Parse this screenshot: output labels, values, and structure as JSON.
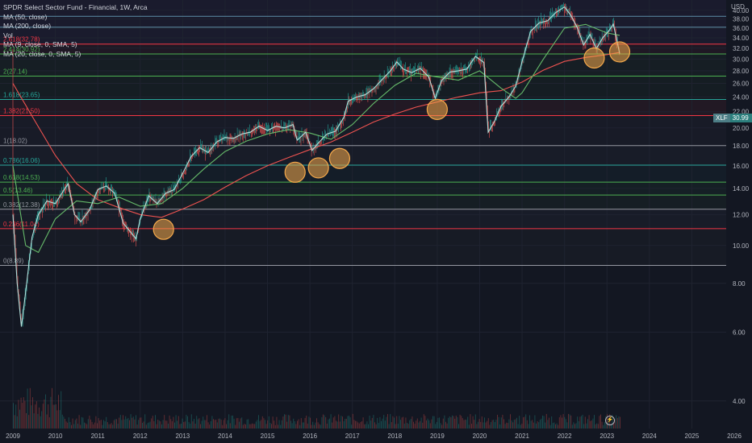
{
  "header": {
    "title": "SPDR Select Sector Fund - Financial, 1W, Arca",
    "indicators": [
      "MA (50, close)",
      "MA (200, close)",
      "Vol",
      "MA (9, close, 0, SMA, 5)",
      "MA (20, close, 0, SMA, 5)"
    ]
  },
  "price_badge": {
    "symbol": "XLF",
    "value": "30.99"
  },
  "colors": {
    "background": "#131722",
    "up": "#26a69a",
    "down": "#ef5350",
    "ma50": "#66bb6a",
    "ma200": "#ef5350",
    "fib_red": "#f23645",
    "fib_green": "#4caf50",
    "fib_grey": "#9598a1",
    "circle": "#f5a94b"
  },
  "chart_data": {
    "type": "candlestick",
    "title": "SPDR Select Sector Fund - Financial, 1W, Arca",
    "y_axis_title": "USD",
    "y_scale": "log",
    "ylim": [
      3.4,
      42.5
    ],
    "xlim": [
      2009.0,
      2026.0
    ],
    "y_ticks": [
      "40.00",
      "38.00",
      "36.00",
      "34.00",
      "32.00",
      "30.00",
      "28.00",
      "26.00",
      "24.00",
      "22.00",
      "20.00",
      "18.00",
      "16.00",
      "14.00",
      "12.00",
      "10.00",
      "8.00",
      "6.00",
      "4.00"
    ],
    "y_tick_values": [
      40,
      38,
      36,
      34,
      32,
      30,
      28,
      26,
      24,
      22,
      20,
      18,
      16,
      14,
      12,
      10,
      8,
      6,
      4
    ],
    "x_ticks": [
      "2009",
      "2010",
      "2011",
      "2012",
      "2013",
      "2014",
      "2015",
      "2016",
      "2017",
      "2018",
      "2019",
      "2020",
      "2021",
      "2022",
      "2023",
      "2024",
      "2025",
      "2026"
    ],
    "x_tick_values": [
      2009,
      2010,
      2011,
      2012,
      2013,
      2014,
      2015,
      2016,
      2017,
      2018,
      2019,
      2020,
      2021,
      2022,
      2023,
      2024,
      2025,
      2026
    ],
    "fib_levels": [
      {
        "label": "2.618(32.78)",
        "value": 32.78,
        "color": "#f23645"
      },
      {
        "label": "2.414(30.92)",
        "value": 30.92,
        "color": "#4caf50"
      },
      {
        "label": "2(27.14)",
        "value": 27.14,
        "color": "#4caf50"
      },
      {
        "label": "1.618(23.65)",
        "value": 23.65,
        "color": "#26a69a"
      },
      {
        "label": "1.382(21.50)",
        "value": 21.5,
        "color": "#f23645"
      },
      {
        "label": "1(18.02)",
        "value": 18.02,
        "color": "#9598a1"
      },
      {
        "label": "0.786(16.06)",
        "value": 16.06,
        "color": "#26a69a"
      },
      {
        "label": "0.618(14.53)",
        "value": 14.53,
        "color": "#4caf50"
      },
      {
        "label": "0.5(13.46)",
        "value": 13.46,
        "color": "#4caf50"
      },
      {
        "label": "0.382(12.38)",
        "value": 12.38,
        "color": "#9598a1"
      },
      {
        "label": "0.236(11.04)",
        "value": 11.04,
        "color": "#f23645"
      },
      {
        "label": "0(8.89)",
        "value": 8.89,
        "color": "#9598a1"
      }
    ],
    "top_lines": [
      38.6,
      36.2
    ],
    "price_path": [
      [
        2009.0,
        12.0
      ],
      [
        2009.1,
        8.0
      ],
      [
        2009.2,
        6.2
      ],
      [
        2009.3,
        7.6
      ],
      [
        2009.45,
        10.5
      ],
      [
        2009.6,
        12.0
      ],
      [
        2009.8,
        13.0
      ],
      [
        2010.0,
        12.8
      ],
      [
        2010.15,
        13.6
      ],
      [
        2010.3,
        14.4
      ],
      [
        2010.45,
        12.0
      ],
      [
        2010.6,
        11.5
      ],
      [
        2010.8,
        12.3
      ],
      [
        2011.0,
        13.9
      ],
      [
        2011.2,
        14.2
      ],
      [
        2011.4,
        13.6
      ],
      [
        2011.6,
        11.4
      ],
      [
        2011.75,
        10.9
      ],
      [
        2011.9,
        10.4
      ],
      [
        2012.0,
        11.7
      ],
      [
        2012.2,
        13.4
      ],
      [
        2012.4,
        12.8
      ],
      [
        2012.6,
        13.6
      ],
      [
        2012.8,
        13.9
      ],
      [
        2013.0,
        15.3
      ],
      [
        2013.2,
        16.9
      ],
      [
        2013.4,
        17.8
      ],
      [
        2013.6,
        17.3
      ],
      [
        2013.8,
        18.4
      ],
      [
        2014.0,
        18.9
      ],
      [
        2014.2,
        18.8
      ],
      [
        2014.4,
        19.3
      ],
      [
        2014.6,
        19.5
      ],
      [
        2014.8,
        20.2
      ],
      [
        2015.0,
        19.7
      ],
      [
        2015.2,
        20.2
      ],
      [
        2015.4,
        20.0
      ],
      [
        2015.6,
        20.4
      ],
      [
        2015.7,
        18.6
      ],
      [
        2015.9,
        19.5
      ],
      [
        2016.05,
        17.5
      ],
      [
        2016.2,
        18.3
      ],
      [
        2016.4,
        19.3
      ],
      [
        2016.6,
        19.6
      ],
      [
        2016.8,
        21.3
      ],
      [
        2016.9,
        23.4
      ],
      [
        2017.1,
        24.0
      ],
      [
        2017.3,
        24.3
      ],
      [
        2017.5,
        25.2
      ],
      [
        2017.7,
        26.6
      ],
      [
        2017.9,
        28.0
      ],
      [
        2018.05,
        29.5
      ],
      [
        2018.2,
        28.3
      ],
      [
        2018.4,
        27.7
      ],
      [
        2018.6,
        28.4
      ],
      [
        2018.8,
        27.0
      ],
      [
        2018.95,
        23.8
      ],
      [
        2019.1,
        26.4
      ],
      [
        2019.3,
        27.8
      ],
      [
        2019.5,
        28.0
      ],
      [
        2019.7,
        28.3
      ],
      [
        2019.9,
        30.5
      ],
      [
        2020.1,
        29.4
      ],
      [
        2020.2,
        19.5
      ],
      [
        2020.35,
        20.8
      ],
      [
        2020.5,
        22.7
      ],
      [
        2020.7,
        24.1
      ],
      [
        2020.85,
        25.6
      ],
      [
        2021.0,
        29.6
      ],
      [
        2021.2,
        35.3
      ],
      [
        2021.4,
        37.1
      ],
      [
        2021.6,
        37.6
      ],
      [
        2021.8,
        39.5
      ],
      [
        2022.0,
        40.8
      ],
      [
        2022.15,
        38.8
      ],
      [
        2022.3,
        36.1
      ],
      [
        2022.45,
        32.6
      ],
      [
        2022.6,
        34.7
      ],
      [
        2022.75,
        31.9
      ],
      [
        2022.9,
        34.0
      ],
      [
        2023.05,
        35.5
      ],
      [
        2023.15,
        36.9
      ],
      [
        2023.22,
        34.0
      ],
      [
        2023.3,
        30.99
      ]
    ],
    "ma200_path": [
      [
        2009.0,
        26.0
      ],
      [
        2009.5,
        21.0
      ],
      [
        2010.0,
        17.0
      ],
      [
        2010.5,
        14.4
      ],
      [
        2011.0,
        13.1
      ],
      [
        2011.5,
        12.5
      ],
      [
        2012.0,
        12.0
      ],
      [
        2012.5,
        11.8
      ],
      [
        2013.0,
        12.4
      ],
      [
        2013.5,
        13.1
      ],
      [
        2014.0,
        14.1
      ],
      [
        2014.5,
        15.1
      ],
      [
        2015.0,
        16.0
      ],
      [
        2015.5,
        16.8
      ],
      [
        2016.0,
        17.6
      ],
      [
        2016.5,
        18.4
      ],
      [
        2017.0,
        19.5
      ],
      [
        2017.5,
        20.7
      ],
      [
        2018.0,
        21.7
      ],
      [
        2018.5,
        22.6
      ],
      [
        2019.0,
        23.3
      ],
      [
        2019.5,
        24.0
      ],
      [
        2020.0,
        24.6
      ],
      [
        2020.5,
        24.9
      ],
      [
        2021.0,
        26.2
      ],
      [
        2021.5,
        28.1
      ],
      [
        2022.0,
        29.6
      ],
      [
        2022.5,
        30.3
      ],
      [
        2023.0,
        30.8
      ],
      [
        2023.3,
        31.2
      ]
    ],
    "ma50_path": [
      [
        2009.0,
        16.0
      ],
      [
        2009.3,
        10.0
      ],
      [
        2009.6,
        9.6
      ],
      [
        2010.0,
        11.7
      ],
      [
        2010.5,
        13.0
      ],
      [
        2011.0,
        12.8
      ],
      [
        2011.5,
        13.3
      ],
      [
        2012.0,
        12.6
      ],
      [
        2012.5,
        12.8
      ],
      [
        2013.0,
        14.0
      ],
      [
        2013.5,
        15.7
      ],
      [
        2014.0,
        17.4
      ],
      [
        2014.5,
        18.5
      ],
      [
        2015.0,
        19.3
      ],
      [
        2015.5,
        19.8
      ],
      [
        2016.0,
        19.4
      ],
      [
        2016.5,
        18.7
      ],
      [
        2017.0,
        20.4
      ],
      [
        2017.5,
        23.1
      ],
      [
        2018.0,
        25.7
      ],
      [
        2018.5,
        27.6
      ],
      [
        2019.0,
        27.0
      ],
      [
        2019.5,
        26.5
      ],
      [
        2020.0,
        28.0
      ],
      [
        2020.5,
        25.3
      ],
      [
        2020.85,
        23.8
      ],
      [
        2021.0,
        24.6
      ],
      [
        2021.5,
        30.0
      ],
      [
        2022.0,
        36.0
      ],
      [
        2022.5,
        36.8
      ],
      [
        2023.0,
        35.0
      ],
      [
        2023.3,
        34.5
      ]
    ],
    "support_circles": [
      [
        2012.55,
        11.0
      ],
      [
        2015.65,
        15.4
      ],
      [
        2016.2,
        15.8
      ],
      [
        2016.7,
        16.7
      ],
      [
        2019.0,
        22.3
      ],
      [
        2022.7,
        30.2
      ],
      [
        2023.3,
        31.3
      ]
    ],
    "volume_x_range": [
      2009.0,
      2023.3
    ]
  }
}
